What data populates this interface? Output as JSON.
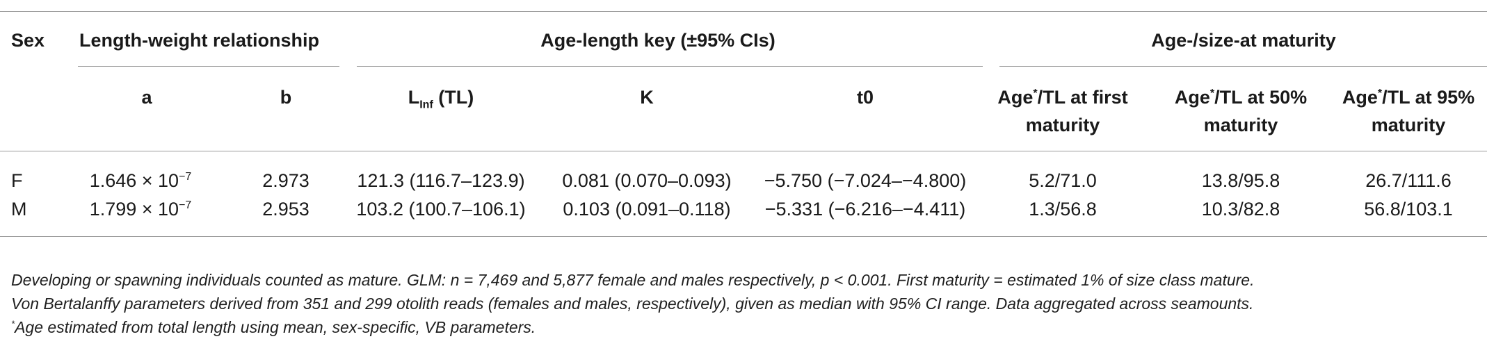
{
  "table": {
    "group_headers": {
      "sex": "Sex",
      "length_weight": "Length-weight relationship",
      "age_length": "Age-length key (±95% CIs)",
      "maturity": "Age-/size-at maturity"
    },
    "sub_headers": {
      "a": "a",
      "b": "b",
      "linf_prefix": "L",
      "linf_sub": "Inf",
      "linf_suffix": " (TL)",
      "k": "K",
      "t0": "t0",
      "first_age": "Age",
      "first_star": "*",
      "first_rest_line1": "/TL at first",
      "first_line2": "maturity",
      "m50_age": "Age",
      "m50_star": "*",
      "m50_rest_line1": "/TL at 50%",
      "m50_line2": "maturity",
      "m95_age": "Age",
      "m95_star": "*",
      "m95_rest_line1": "/TL at 95%",
      "m95_line2": "maturity"
    },
    "rows": [
      {
        "sex": "F",
        "a_mantissa": "1.646 × 10",
        "a_exp": "−7",
        "b": "2.973",
        "linf": "121.3 (116.7–123.9)",
        "k": "0.081 (0.070–0.093)",
        "t0": "−5.750 (−7.024–−4.800)",
        "first": "5.2/71.0",
        "m50": "13.8/95.8",
        "m95": "26.7/111.6"
      },
      {
        "sex": "M",
        "a_mantissa": "1.799 × 10",
        "a_exp": "−7",
        "b": "2.953",
        "linf": "103.2 (100.7–106.1)",
        "k": "0.103 (0.091–0.118)",
        "t0": "−5.331 (−6.216–−4.411)",
        "first": "1.3/56.8",
        "m50": "10.3/82.8",
        "m95": "56.8/103.1"
      }
    ]
  },
  "footnotes": {
    "line1": "Developing or spawning individuals counted as mature. GLM: n = 7,469 and 5,877 female and males respectively, p < 0.001. First maturity = estimated 1% of size class mature.",
    "line2": "Von Bertalanffy parameters derived from 351 and 299 otolith reads (females and males, respectively), given as median with 95% CI range. Data aggregated across seamounts.",
    "line3_star": "*",
    "line3": "Age estimated from total length using mean, sex-specific, VB parameters."
  }
}
